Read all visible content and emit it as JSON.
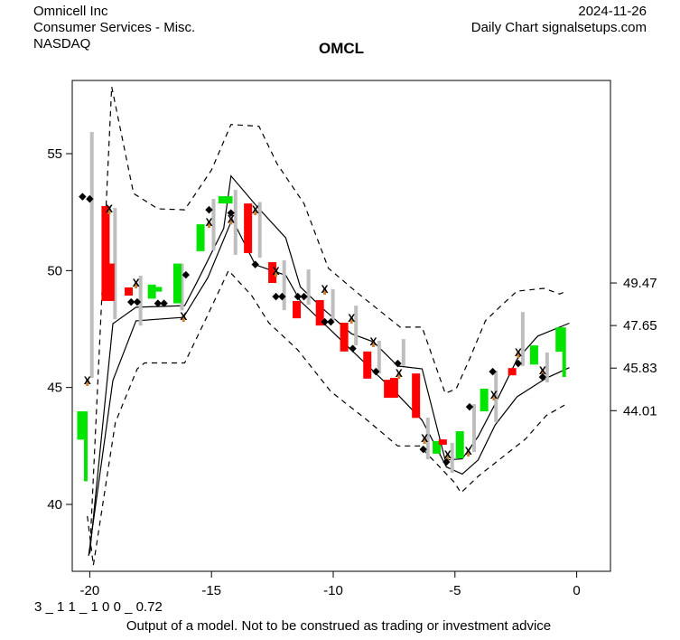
{
  "header": {
    "company": "Omnicell Inc",
    "sector": "Consumer Services - Misc.",
    "exchange": "NASDAQ",
    "date": "2024-11-26",
    "chart_label": "Daily Chart signalsetups.com",
    "symbol": "OMCL"
  },
  "footer": {
    "model_params": "3 _ 1 1 _ 1 0 0 _ 0.72",
    "disclaimer": "Output of a model. Not to be construed as trading or investment advice"
  },
  "colors": {
    "up": "#00e400",
    "down": "#fe0000",
    "wick": "#bebebe",
    "line": "#000000",
    "marker_diamond": "#000000",
    "marker_x": "#000000",
    "marker_x_tick": "#cd8032",
    "background": "#ffffff"
  },
  "chart_data": {
    "type": "candlestick",
    "title": "OMCL",
    "xlabel": "",
    "ylabel": "",
    "grid": false,
    "x_axis": {
      "ticks": [
        -20,
        -15,
        -10,
        -5,
        0
      ],
      "range": [
        -20.72,
        1.3
      ]
    },
    "y_axis_left": {
      "ticks": [
        40,
        45,
        50,
        55
      ],
      "range": [
        37.0,
        58.1
      ]
    },
    "y_axis_right": {
      "ticks": [
        49.47,
        47.65,
        45.83,
        44.01
      ]
    },
    "candles": [
      {
        "d": -20.35,
        "body": [
          43.98,
          42.77
        ],
        "wick": [
          43.98,
          40.99
        ],
        "c": "g",
        "wc": "g"
      },
      {
        "d": -20.1,
        "body": null,
        "wick": [
          55.93,
          45.41
        ],
        "c": null
      },
      {
        "d": -19.35,
        "body": [
          52.76,
          48.7
        ],
        "wick": null,
        "c": "r"
      },
      {
        "d": -19.15,
        "body": [
          50.3,
          48.7
        ],
        "wick": [
          52.68,
          47.92
        ],
        "c": "r"
      },
      {
        "d": -18.4,
        "body": [
          49.28,
          48.93
        ],
        "wick": null,
        "c": "r"
      },
      {
        "d": -18.1,
        "body": null,
        "wick": [
          49.78,
          47.65
        ],
        "c": null
      },
      {
        "d": -17.45,
        "body": [
          49.4,
          48.8
        ],
        "wick": null,
        "c": "g"
      },
      {
        "d": -17.2,
        "body": [
          49.3,
          49.1
        ],
        "wick": null,
        "c": "g"
      },
      {
        "d": -16.4,
        "body": [
          50.3,
          48.6
        ],
        "wick": [
          50.3,
          48.3
        ],
        "c": "g"
      },
      {
        "d": -15.45,
        "body": [
          51.98,
          50.83
        ],
        "wick": null,
        "c": "g"
      },
      {
        "d": -15.1,
        "body": null,
        "wick": [
          53.07,
          50.86
        ],
        "c": null
      },
      {
        "d": -14.55,
        "body": [
          53.18,
          52.87
        ],
        "wick": null,
        "c": "g"
      },
      {
        "d": -14.3,
        "body": [
          53.18,
          52.87
        ],
        "wick": null,
        "c": "g"
      },
      {
        "d": -14.2,
        "body": null,
        "wick": [
          53.45,
          50.67
        ],
        "c": null
      },
      {
        "d": -13.5,
        "body": [
          52.87,
          50.75
        ],
        "wick": null,
        "c": "r"
      },
      {
        "d": -13.2,
        "body": null,
        "wick": [
          52.93,
          50.55
        ],
        "c": null
      },
      {
        "d": -12.5,
        "body": [
          50.36,
          49.47
        ],
        "wick": null,
        "c": "r"
      },
      {
        "d": -12.2,
        "body": null,
        "wick": [
          50.44,
          48.31
        ],
        "c": null
      },
      {
        "d": -11.5,
        "body": [
          48.7,
          47.96
        ],
        "wick": null,
        "c": "r"
      },
      {
        "d": -11.2,
        "body": null,
        "wick": [
          50.05,
          48.54
        ],
        "c": null
      },
      {
        "d": -10.55,
        "body": [
          48.74,
          47.65
        ],
        "wick": null,
        "c": "r"
      },
      {
        "d": -10.2,
        "body": null,
        "wick": [
          49.2,
          47.85
        ],
        "c": null
      },
      {
        "d": -9.55,
        "body": [
          47.77,
          46.54
        ],
        "wick": null,
        "c": "r"
      },
      {
        "d": -9.25,
        "body": null,
        "wick": [
          48.5,
          46.8
        ],
        "c": null
      },
      {
        "d": -8.6,
        "body": [
          46.54,
          45.38
        ],
        "wick": null,
        "c": "r"
      },
      {
        "d": -8.3,
        "body": null,
        "wick": [
          47.0,
          45.6
        ],
        "c": null
      },
      {
        "d": -7.75,
        "body": [
          45.33,
          44.56
        ],
        "wick": null,
        "c": "r"
      },
      {
        "d": -7.5,
        "body": [
          45.41,
          44.56
        ],
        "wick": null,
        "c": "r"
      },
      {
        "d": -7.3,
        "body": null,
        "wick": [
          47.07,
          45.92
        ],
        "c": null
      },
      {
        "d": -6.6,
        "body": [
          45.6,
          43.7
        ],
        "wick": null,
        "c": "r"
      },
      {
        "d": -6.3,
        "body": null,
        "wick": [
          43.71,
          41.93
        ],
        "c": null
      },
      {
        "d": -5.75,
        "body": [
          42.71,
          42.17
        ],
        "wick": null,
        "c": "g"
      },
      {
        "d": -5.5,
        "body": [
          42.78,
          42.55
        ],
        "wick": null,
        "c": "r"
      },
      {
        "d": -5.3,
        "body": null,
        "wick": [
          42.63,
          41.35
        ],
        "c": null
      },
      {
        "d": -4.8,
        "body": [
          43.13,
          41.97
        ],
        "wick": null,
        "c": "g"
      },
      {
        "d": -4.4,
        "body": null,
        "wick": [
          44.29,
          42.24
        ],
        "c": null
      },
      {
        "d": -3.8,
        "body": [
          44.95,
          43.98
        ],
        "wick": null,
        "c": "g"
      },
      {
        "d": -3.5,
        "body": null,
        "wick": [
          45.72,
          43.52
        ],
        "c": null
      },
      {
        "d": -2.65,
        "body": [
          45.83,
          45.52
        ],
        "wick": null,
        "c": "r"
      },
      {
        "d": -2.4,
        "body": null,
        "wick": [
          48.23,
          45.92
        ],
        "c": null
      },
      {
        "d": -1.75,
        "body": [
          46.8,
          45.98
        ],
        "wick": null,
        "c": "g"
      },
      {
        "d": -1.4,
        "body": null,
        "wick": [
          46.5,
          45.22
        ],
        "c": null
      },
      {
        "d": -0.7,
        "body": [
          47.57,
          46.53
        ],
        "wick": [
          47.57,
          45.45
        ],
        "c": "g",
        "wc": "g"
      }
    ],
    "diamond_markers": [
      [
        -20.3,
        53.2
      ],
      [
        -20.0,
        53.1
      ],
      [
        -18.3,
        48.7
      ],
      [
        -18.05,
        48.7
      ],
      [
        -17.2,
        48.65
      ],
      [
        -16.95,
        48.65
      ],
      [
        -16.05,
        49.85
      ],
      [
        -15.1,
        52.65
      ],
      [
        -14.2,
        52.5
      ],
      [
        -13.2,
        50.3
      ],
      [
        -12.35,
        48.93
      ],
      [
        -12.1,
        48.93
      ],
      [
        -11.45,
        48.93
      ],
      [
        -11.2,
        48.93
      ],
      [
        -10.35,
        47.85
      ],
      [
        -10.1,
        47.85
      ],
      [
        -9.2,
        46.7
      ],
      [
        -8.25,
        45.72
      ],
      [
        -7.35,
        46.07
      ],
      [
        -6.3,
        42.4
      ],
      [
        -5.35,
        41.86
      ],
      [
        -4.4,
        44.22
      ],
      [
        -3.45,
        45.72
      ],
      [
        -2.4,
        46.07
      ],
      [
        -1.4,
        45.49
      ]
    ],
    "x_markers": [
      [
        -20.1,
        45.3
      ],
      [
        -19.2,
        52.64
      ],
      [
        -18.1,
        49.47
      ],
      [
        -16.15,
        48.04
      ],
      [
        -15.1,
        52.06
      ],
      [
        -14.2,
        52.2
      ],
      [
        -13.2,
        52.6
      ],
      [
        -12.35,
        49.97
      ],
      [
        -10.35,
        49.2
      ],
      [
        -9.25,
        47.96
      ],
      [
        -8.35,
        46.96
      ],
      [
        -7.3,
        45.6
      ],
      [
        -6.25,
        42.82
      ],
      [
        -5.3,
        42.12
      ],
      [
        -4.45,
        42.28
      ],
      [
        -3.4,
        44.68
      ],
      [
        -2.4,
        46.5
      ],
      [
        -1.4,
        45.72
      ]
    ],
    "bands": {
      "outer_upper": [
        [
          -20.0,
          37.9
        ],
        [
          -19.1,
          57.86
        ],
        [
          -18.2,
          53.3
        ],
        [
          -17.2,
          52.64
        ],
        [
          -16.1,
          52.6
        ],
        [
          -15.0,
          54.3
        ],
        [
          -14.2,
          56.25
        ],
        [
          -13.05,
          56.17
        ],
        [
          -12.3,
          54.55
        ],
        [
          -11.2,
          52.87
        ],
        [
          -10.2,
          50.1
        ],
        [
          -8.95,
          49.0
        ],
        [
          -7.25,
          47.58
        ],
        [
          -6.35,
          47.58
        ],
        [
          -5.4,
          44.75
        ],
        [
          -4.95,
          44.94
        ],
        [
          -4.4,
          46.22
        ],
        [
          -3.75,
          47.85
        ],
        [
          -3.1,
          48.5
        ],
        [
          -2.45,
          49.12
        ],
        [
          -1.35,
          49.24
        ],
        [
          -0.7,
          49.0
        ],
        [
          -0.4,
          49.12
        ]
      ],
      "outer_lower": [
        [
          -20.1,
          39.5
        ],
        [
          -19.85,
          37.4
        ],
        [
          -18.95,
          43.5
        ],
        [
          -18.05,
          45.8
        ],
        [
          -17.75,
          46.05
        ],
        [
          -16.1,
          46.05
        ],
        [
          -15.2,
          48.0
        ],
        [
          -14.3,
          50.0
        ],
        [
          -13.35,
          48.93
        ],
        [
          -12.65,
          47.77
        ],
        [
          -11.45,
          46.6
        ],
        [
          -10.1,
          44.83
        ],
        [
          -8.6,
          43.6
        ],
        [
          -7.35,
          42.5
        ],
        [
          -6.45,
          42.5
        ],
        [
          -5.05,
          40.97
        ],
        [
          -4.75,
          40.5
        ],
        [
          -4.05,
          41.2
        ],
        [
          -2.1,
          42.8
        ],
        [
          -1.25,
          43.8
        ],
        [
          -0.5,
          44.25
        ]
      ],
      "inner_upper": [
        [
          -20.0,
          37.9
        ],
        [
          -19.05,
          47.73
        ],
        [
          -18.1,
          48.43
        ],
        [
          -16.1,
          48.5
        ],
        [
          -15.6,
          49.5
        ],
        [
          -14.5,
          51.8
        ],
        [
          -14.2,
          54.05
        ],
        [
          -13.15,
          52.76
        ],
        [
          -11.95,
          51.4
        ],
        [
          -11.35,
          49.3
        ],
        [
          -10.35,
          48.3
        ],
        [
          -9.25,
          47.3
        ],
        [
          -8.35,
          46.95
        ],
        [
          -7.35,
          45.92
        ],
        [
          -6.35,
          45.8
        ],
        [
          -5.4,
          41.9
        ],
        [
          -4.7,
          41.95
        ],
        [
          -4.05,
          42.9
        ],
        [
          -3.35,
          44.3
        ],
        [
          -2.45,
          46.2
        ],
        [
          -1.6,
          47.2
        ],
        [
          -0.3,
          47.75
        ]
      ],
      "inner_lower": [
        [
          -20.05,
          37.8
        ],
        [
          -19.05,
          45.3
        ],
        [
          -18.1,
          47.85
        ],
        [
          -16.15,
          48.0
        ],
        [
          -15.15,
          49.7
        ],
        [
          -14.15,
          52.2
        ],
        [
          -13.2,
          50.25
        ],
        [
          -11.95,
          49.8
        ],
        [
          -11.35,
          48.7
        ],
        [
          -10.35,
          47.7
        ],
        [
          -9.25,
          46.6
        ],
        [
          -8.35,
          45.7
        ],
        [
          -7.35,
          44.7
        ],
        [
          -6.35,
          43.6
        ],
        [
          -5.35,
          41.6
        ],
        [
          -4.7,
          41.3
        ],
        [
          -4.05,
          41.9
        ],
        [
          -3.35,
          43.4
        ],
        [
          -2.45,
          44.6
        ],
        [
          -1.25,
          45.4
        ],
        [
          -0.3,
          45.85
        ]
      ]
    }
  }
}
